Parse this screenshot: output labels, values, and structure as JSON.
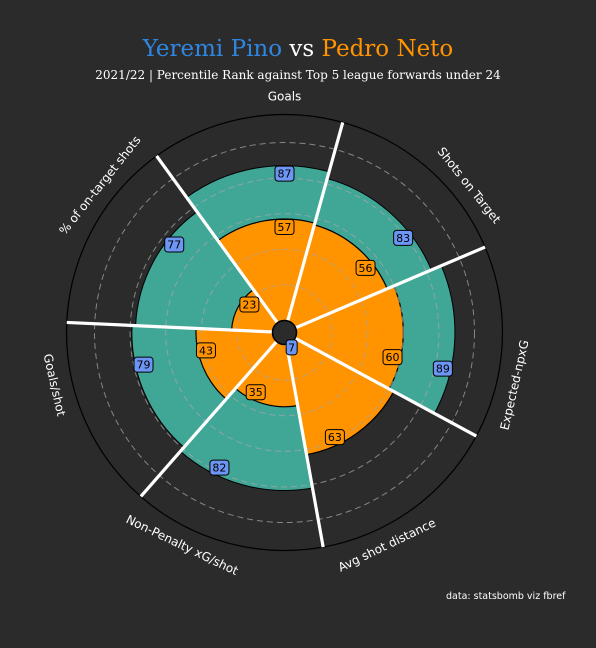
{
  "title": {
    "player_a": "Yeremi Pino",
    "vs": "vs",
    "player_b": "Pedro Neto"
  },
  "subtitle": "2021/22 | Percentile Rank against Top 5 league forwards under 24",
  "credit": "data: statsbomb viz fbref",
  "colors": {
    "background": "#2b2b2b",
    "player_a_title": "#2f86e0",
    "player_b_title": "#ff9300",
    "player_a_fill": "#40a797",
    "player_b_fill": "#ff9300",
    "player_a_box": "#6d96f4",
    "player_b_box": "#ff9300",
    "divider": "#ffffff"
  },
  "chart_data": {
    "type": "radar-pizza",
    "scale": [
      0,
      100
    ],
    "categories": [
      "Goals",
      "Shots on Target",
      "Expected-npxG",
      "Avg shot distance",
      "Non-Penalty xG/shot",
      "Goals/shot",
      "% of on-target shots"
    ],
    "series": [
      {
        "name": "Yeremi Pino",
        "values": [
          87,
          83,
          89,
          7,
          82,
          79,
          77
        ]
      },
      {
        "name": "Pedro Neto",
        "values": [
          57,
          56,
          60,
          63,
          35,
          43,
          23
        ]
      }
    ]
  }
}
